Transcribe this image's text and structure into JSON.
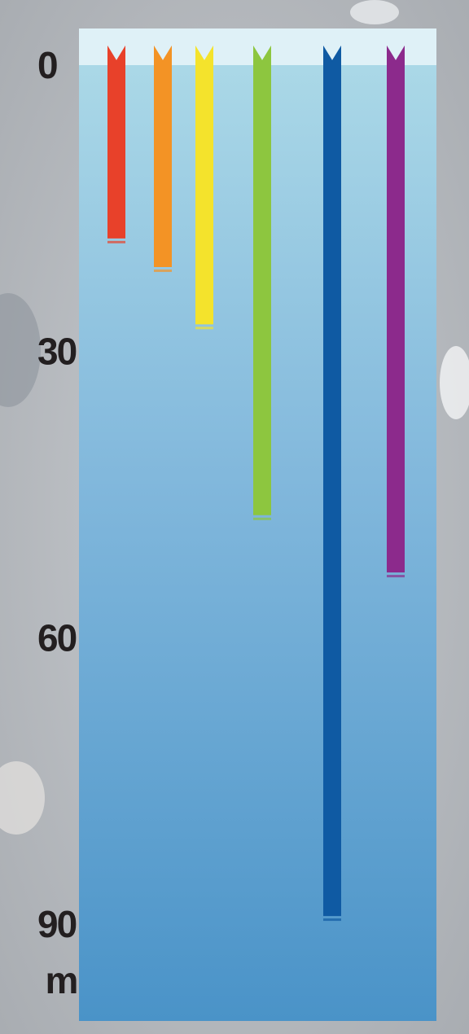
{
  "chart_data": {
    "type": "bar",
    "ylabel": "m",
    "categories": [
      null,
      null,
      null,
      null,
      null,
      null
    ],
    "series": [
      {
        "values": [
          18,
          21,
          27,
          47,
          89,
          53
        ]
      }
    ],
    "colors": [
      "#e8412a",
      "#f39325",
      "#f4e32c",
      "#8dc63f",
      "#0f5aa3",
      "#8c2a8c"
    ],
    "ylim": [
      -4,
      100
    ],
    "yticks": [
      0,
      30,
      60,
      90
    ],
    "inverted": true
  }
}
